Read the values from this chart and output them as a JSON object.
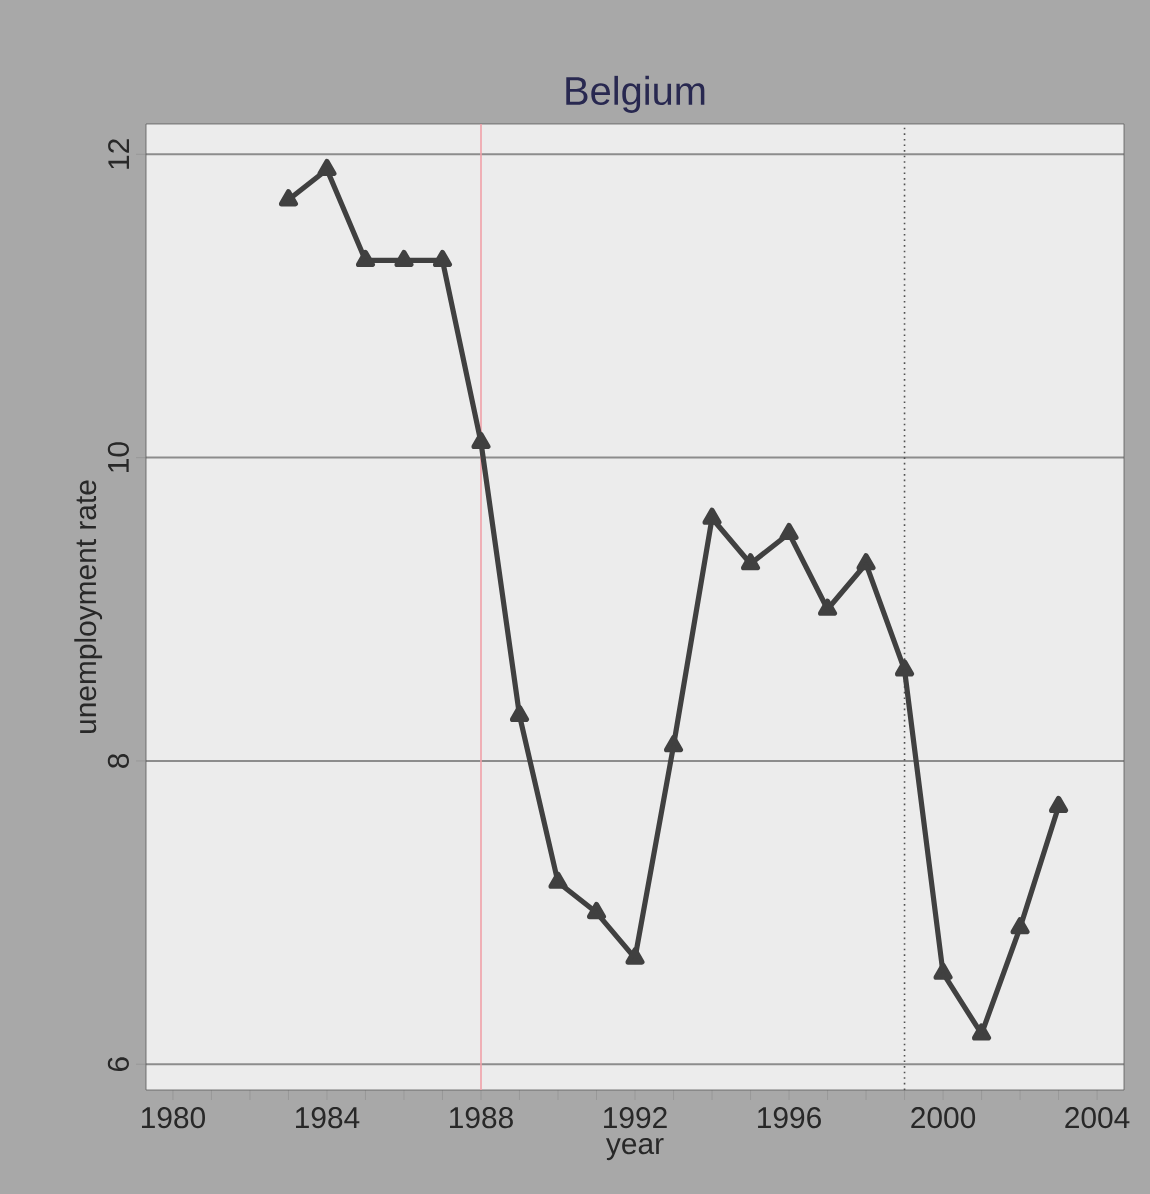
{
  "chart_data": {
    "type": "line",
    "title": "Belgium",
    "xlabel": "year",
    "ylabel": "unemployment rate",
    "x": [
      1983,
      1984,
      1985,
      1986,
      1987,
      1988,
      1989,
      1990,
      1991,
      1992,
      1993,
      1994,
      1995,
      1996,
      1997,
      1998,
      1999,
      2000,
      2001,
      2002,
      2003
    ],
    "series": [
      {
        "color": "#404040",
        "values": [
          11.7,
          11.9,
          11.3,
          11.3,
          11.3,
          10.1,
          8.3,
          7.2,
          7.0,
          6.7,
          8.1,
          9.6,
          9.3,
          9.5,
          9.0,
          9.3,
          8.6,
          6.6,
          6.2,
          6.9,
          7.7
        ]
      }
    ],
    "xlim": [
      1979.3,
      2004.7
    ],
    "ylim": [
      5.83,
      12.2
    ],
    "xticks": [
      1980,
      {
        "value": 1981,
        "label": null
      },
      {
        "value": 1982,
        "label": null
      },
      {
        "value": 1983,
        "label": null
      },
      1984,
      {
        "value": 1985,
        "label": null
      },
      {
        "value": 1986,
        "label": null
      },
      {
        "value": 1987,
        "label": null
      },
      1988,
      {
        "value": 1989,
        "label": null
      },
      {
        "value": 1990,
        "label": null
      },
      {
        "value": 1991,
        "label": null
      },
      1992,
      {
        "value": 1993,
        "label": null
      },
      {
        "value": 1994,
        "label": null
      },
      {
        "value": 1995,
        "label": null
      },
      1996,
      {
        "value": 1997,
        "label": null
      },
      {
        "value": 1998,
        "label": null
      },
      {
        "value": 1999,
        "label": null
      },
      2000,
      {
        "value": 2001,
        "label": null
      },
      {
        "value": 2002,
        "label": null
      },
      {
        "value": 2003,
        "label": null
      },
      2004
    ],
    "yticks": [
      6,
      8,
      10,
      12
    ],
    "ref_lines": [
      {
        "axis": "x",
        "value": 1988,
        "color": "#f0a0a8"
      },
      {
        "axis": "x",
        "value": 1999,
        "color": "#505050",
        "line_style": "dotted"
      }
    ],
    "grid": "y",
    "marker": "triangle",
    "line_style": "solid"
  }
}
